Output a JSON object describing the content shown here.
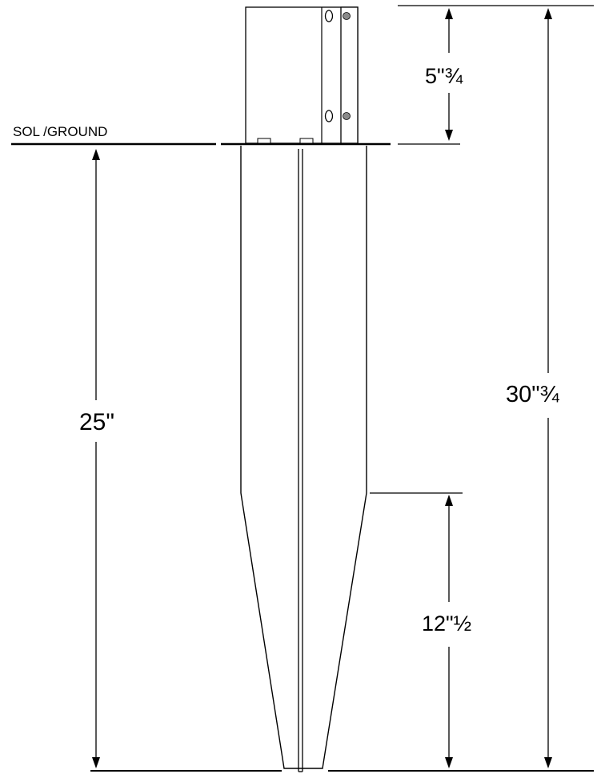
{
  "labels": {
    "ground": "SOL /GROUND",
    "bracket_height": "5\"¾",
    "total_height": "30\"¾",
    "buried_depth": "25\"",
    "taper_length": "12\"½"
  },
  "colors": {
    "line": "#000000",
    "background": "#ffffff",
    "bolt": "#8a8a8a"
  }
}
